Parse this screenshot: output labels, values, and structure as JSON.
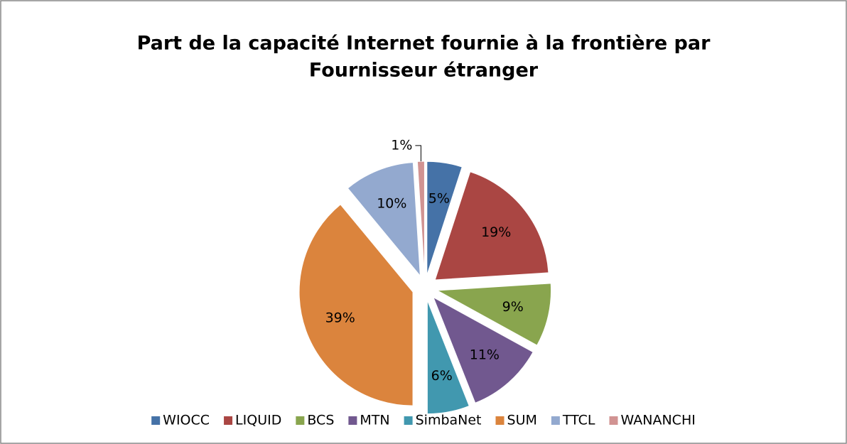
{
  "chart_data": {
    "type": "pie",
    "title": [
      "Part de la capacité Internet fournie à la frontière par",
      "Fournisseur  étranger"
    ],
    "categories": [
      "WIOCC",
      "LIQUID",
      "BCS",
      "MTN",
      "SimbaNet",
      "SUM",
      "TTCL",
      "WANANCHI"
    ],
    "values": [
      5,
      19,
      9,
      11,
      6,
      39,
      10,
      1
    ],
    "value_labels": [
      "5%",
      "19%",
      "9%",
      "11%",
      "6%",
      "39%",
      "10%",
      "1%"
    ],
    "colors": [
      "#4572a7",
      "#aa4643",
      "#89a54e",
      "#71588f",
      "#4198af",
      "#db843d",
      "#93a9cf",
      "#d19392"
    ],
    "legend": "bottom"
  }
}
